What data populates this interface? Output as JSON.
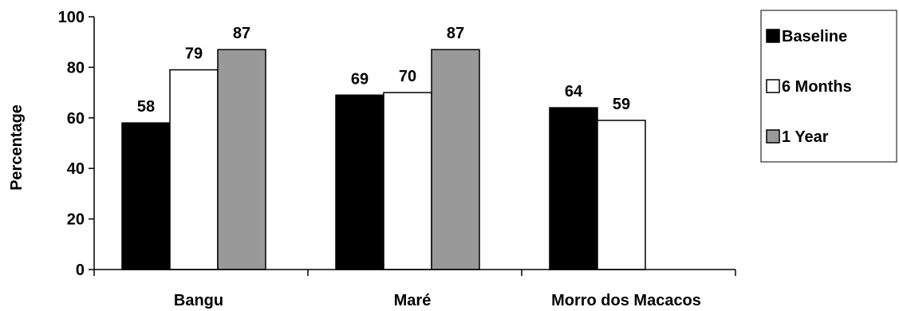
{
  "chart_data": {
    "type": "bar",
    "title": "",
    "xlabel": "",
    "ylabel": "Percentage",
    "ylim": [
      0,
      100
    ],
    "yticks": [
      0,
      20,
      40,
      60,
      80,
      100
    ],
    "categories": [
      "Bangu",
      "Maré",
      "Morro dos Macacos"
    ],
    "series": [
      {
        "name": "Baseline",
        "values": [
          58,
          69,
          64
        ],
        "color": "#000000"
      },
      {
        "name": "6 Months",
        "values": [
          79,
          70,
          59
        ],
        "color": "#ffffff"
      },
      {
        "name": "1 Year",
        "values": [
          87,
          87,
          null
        ],
        "color": "#999999"
      }
    ],
    "grid": false,
    "legend": "right"
  }
}
